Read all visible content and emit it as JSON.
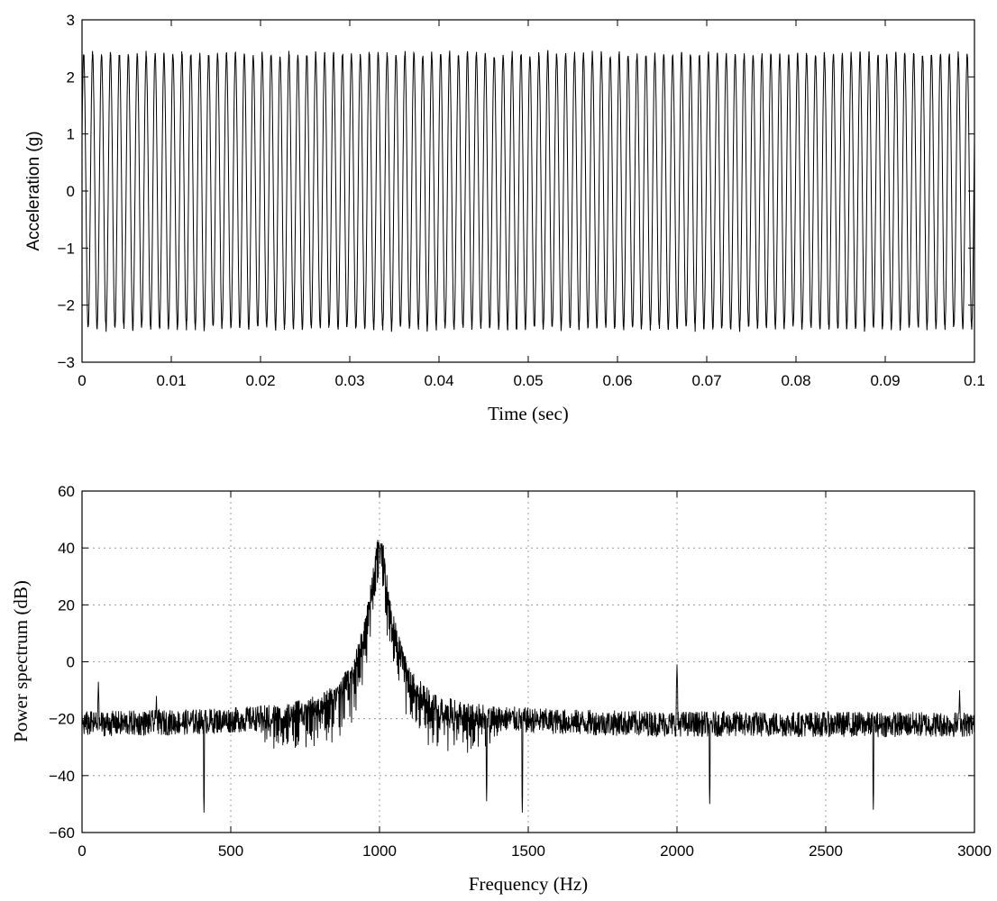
{
  "chart_data": [
    {
      "type": "line",
      "title": "",
      "xlabel": "Time (sec)",
      "ylabel": "Acceleration (g)",
      "xlim": [
        0,
        0.1
      ],
      "ylim": [
        -3,
        3
      ],
      "xticks": [
        0,
        0.01,
        0.02,
        0.03,
        0.04,
        0.05,
        0.06,
        0.07,
        0.08,
        0.09,
        0.1
      ],
      "xtick_labels": [
        "0",
        "0.01",
        "0.02",
        "0.03",
        "0.04",
        "0.05",
        "0.06",
        "0.07",
        "0.08",
        "0.09",
        "0.1"
      ],
      "yticks": [
        -3,
        -2,
        -1,
        0,
        1,
        2,
        3
      ],
      "ytick_labels": [
        "−3",
        "−2",
        "−1",
        "0",
        "1",
        "2",
        "3"
      ],
      "grid": false,
      "series": [
        {
          "color": "#000000",
          "signal": "sinusoid",
          "frequency_hz": 1000,
          "amplitude_g": 2.4,
          "t_start": 0,
          "t_end": 0.1
        }
      ]
    },
    {
      "type": "line",
      "title": "",
      "xlabel": "Frequency (Hz)",
      "ylabel": "Power spectrum (dB)",
      "xlim": [
        0,
        3000
      ],
      "ylim": [
        -60,
        60
      ],
      "xticks": [
        0,
        500,
        1000,
        1500,
        2000,
        2500,
        3000
      ],
      "xtick_labels": [
        "0",
        "500",
        "1000",
        "1500",
        "2000",
        "2500",
        "3000"
      ],
      "yticks": [
        -60,
        -40,
        -20,
        0,
        20,
        40,
        60
      ],
      "ytick_labels": [
        "−60",
        "−40",
        "−20",
        "0",
        "20",
        "40",
        "60"
      ],
      "grid": true,
      "noise_floor_db": -22,
      "series": [
        {
          "color": "#000000",
          "peaks": [
            {
              "x": 1000,
              "y": 40
            },
            {
              "x": 2000,
              "y": -1
            },
            {
              "x": 55,
              "y": -7
            },
            {
              "x": 250,
              "y": -12
            },
            {
              "x": 2950,
              "y": -10
            }
          ],
          "dips": [
            {
              "x": 410,
              "y": -53
            },
            {
              "x": 1480,
              "y": -53
            },
            {
              "x": 2660,
              "y": -52
            },
            {
              "x": 2110,
              "y": -50
            },
            {
              "x": 1360,
              "y": -49
            }
          ]
        }
      ]
    }
  ]
}
